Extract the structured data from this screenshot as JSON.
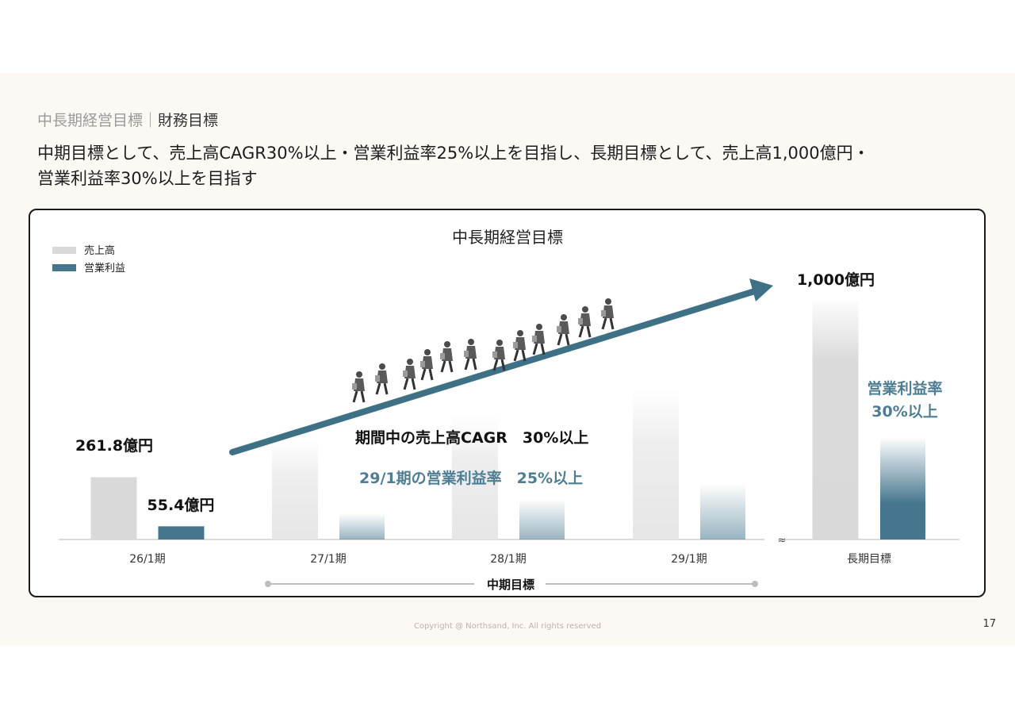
{
  "header": {
    "breadcrumb_section": "中長期経営目標｜",
    "breadcrumb_page": "財務目標",
    "headline_line1": "中期目標として、売上高CAGR30%以上・営業利益率25%以上を目指し、長期目標として、売上高1,000億円・",
    "headline_line2": "営業利益率30%以上を目指す"
  },
  "chart_data": {
    "type": "bar",
    "title": "中長期経営目標",
    "categories": [
      "26/1期",
      "27/1期",
      "28/1期",
      "29/1期",
      "長期目標"
    ],
    "series": [
      {
        "name": "売上高",
        "values": [
          261.8,
          null,
          null,
          null,
          1000
        ],
        "color": "#d9d9d9"
      },
      {
        "name": "営業利益",
        "values": [
          55.4,
          null,
          null,
          null,
          null
        ],
        "color": "#45768e"
      }
    ],
    "value_labels": {
      "sales_26": "261.8億円",
      "profit_26": "55.4億円",
      "sales_long": "1,000億円"
    },
    "annotations": {
      "cagr": "期間中の売上高CAGR　30%以上",
      "margin_29": "29/1期の営業利益率　25%以上",
      "long_margin_line1": "営業利益率",
      "long_margin_line2": "30%以上"
    },
    "bracket_label": "中期目標",
    "axis_break": "≈",
    "ylim": [
      0,
      1100
    ]
  },
  "colors": {
    "sales": "#d9d9d9",
    "profit": "#45768e",
    "arrow": "#3f7186",
    "accent_text": "#4f7e93"
  },
  "footer": {
    "copyright": "Copyright @ Northsand, Inc. All rights reserved",
    "page": "17"
  }
}
